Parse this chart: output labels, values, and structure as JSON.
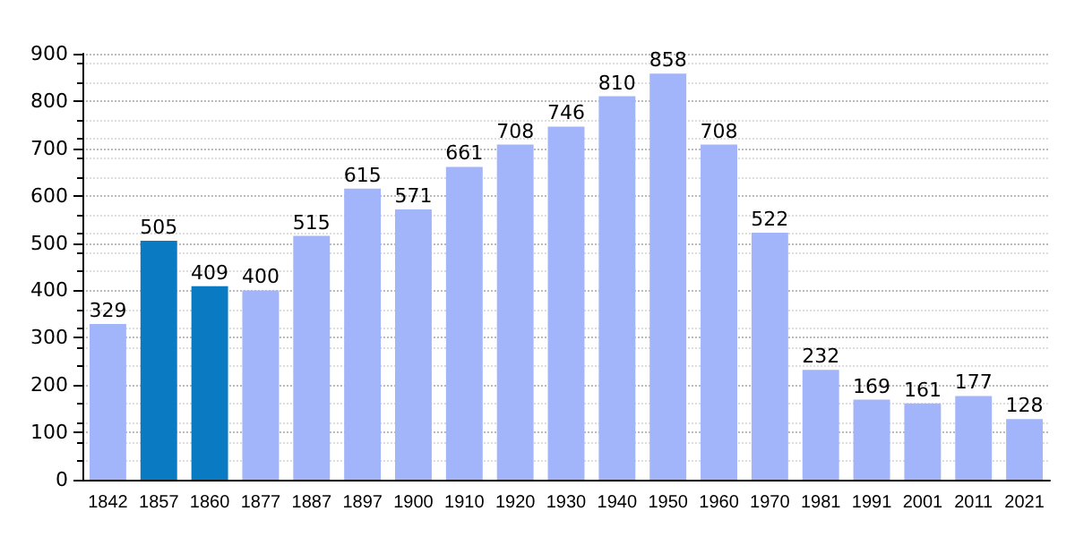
{
  "chart_data": {
    "type": "bar",
    "categories": [
      "1842",
      "1857",
      "1860",
      "1877",
      "1887",
      "1897",
      "1900",
      "1910",
      "1920",
      "1930",
      "1940",
      "1950",
      "1960",
      "1970",
      "1981",
      "1991",
      "2001",
      "2011",
      "2021"
    ],
    "values": [
      329,
      505,
      409,
      400,
      515,
      615,
      571,
      661,
      708,
      746,
      810,
      858,
      708,
      522,
      232,
      169,
      161,
      177,
      128
    ],
    "colors": [
      "#a3b5fa",
      "#0a7bc3",
      "#0a7bc3",
      "#a3b5fa",
      "#a3b5fa",
      "#a3b5fa",
      "#a3b5fa",
      "#a3b5fa",
      "#a3b5fa",
      "#a3b5fa",
      "#a3b5fa",
      "#a3b5fa",
      "#a3b5fa",
      "#a3b5fa",
      "#a3b5fa",
      "#a3b5fa",
      "#a3b5fa",
      "#a3b5fa",
      "#a3b5fa"
    ],
    "ylim": [
      0,
      900
    ],
    "yticks": [
      0,
      100,
      200,
      300,
      400,
      500,
      600,
      700,
      800,
      900
    ],
    "grid": "y",
    "data_labels": true
  }
}
